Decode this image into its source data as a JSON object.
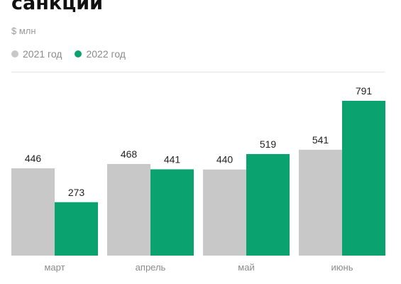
{
  "header": {
    "title": "санкций",
    "unit": "$ млн"
  },
  "legend": [
    {
      "label": "2021 год",
      "color": "#c8c8c8"
    },
    {
      "label": "2022 год",
      "color": "#0aa36f"
    }
  ],
  "chart_data": {
    "type": "bar",
    "title": "санкций",
    "ylabel": "$ млн",
    "categories": [
      "март",
      "апрель",
      "май",
      "июнь"
    ],
    "series": [
      {
        "name": "2021 год",
        "values": [
          446,
          468,
          440,
          541
        ],
        "color": "#c8c8c8"
      },
      {
        "name": "2022 год",
        "values": [
          273,
          441,
          519,
          791
        ],
        "color": "#0aa36f"
      }
    ],
    "ylim": [
      0,
      800
    ],
    "grid": false,
    "legend_position": "top-left"
  }
}
